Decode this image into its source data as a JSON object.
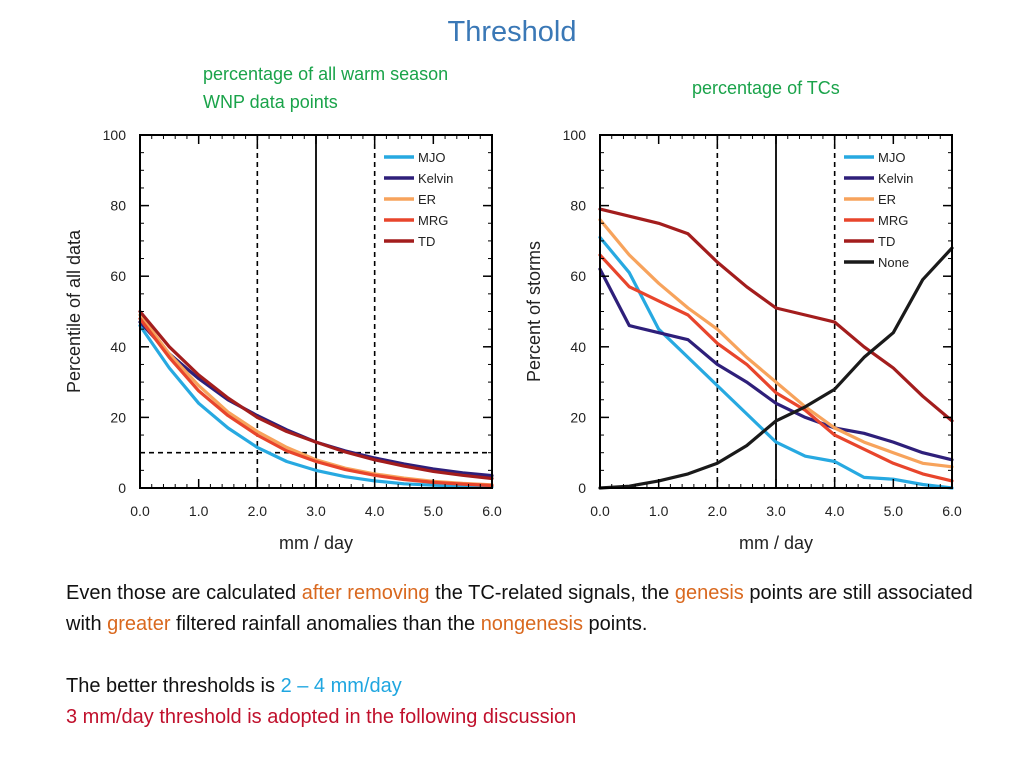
{
  "slide": {
    "title": "Threshold",
    "annotation_left": "percentage of all warm season WNP data points",
    "annotation_right": "percentage of TCs"
  },
  "colors": {
    "title": "#3a78b6",
    "annotation": "#1aa34a",
    "highlight_orange": "#d9681e",
    "highlight_blue": "#1fa6e0",
    "highlight_red": "#c0102c",
    "MJO": "#27a9e1",
    "Kelvin": "#2e1f7a",
    "ER": "#f7a35c",
    "MRG": "#e8452c",
    "TD": "#a31d1d",
    "None": "#1a1a1a"
  },
  "body": {
    "p1_a": "Even those are calculated ",
    "p1_b": "after removing",
    "p1_c": " the TC-related signals, the ",
    "p1_d": "genesis",
    "p1_e": " points are still associated with ",
    "p1_f": "greater",
    "p1_g": " filtered rainfall anomalies than the ",
    "p1_h": "nongenesis",
    "p1_i": " points.",
    "p2_a": "The better thresholds is ",
    "p2_b": "2 – 4 mm/day",
    "p3": "3 mm/day threshold is adopted in the following discussion"
  },
  "chart_data": [
    {
      "type": "line",
      "xlabel": "mm / day",
      "ylabel": "Percentile of all data",
      "xlim": [
        0,
        6
      ],
      "ylim": [
        0,
        100
      ],
      "xticks": [
        0,
        1,
        2,
        3,
        4,
        5,
        6
      ],
      "xtick_labels": [
        "0.0",
        "1.0",
        "2.0",
        "3.0",
        "4.0",
        "5.0",
        "6.0"
      ],
      "yticks": [
        0,
        20,
        40,
        60,
        80,
        100
      ],
      "ytick_labels": [
        "0",
        "20",
        "40",
        "60",
        "80",
        "100"
      ],
      "vlines": [
        {
          "x": 2,
          "style": "dashed"
        },
        {
          "x": 3,
          "style": "solid"
        },
        {
          "x": 4,
          "style": "dashed"
        }
      ],
      "hlines": [
        {
          "y": 10,
          "style": "dashed"
        }
      ],
      "legend": "top-right",
      "x": [
        0,
        0.5,
        1,
        1.5,
        2,
        2.5,
        3,
        3.5,
        4,
        4.5,
        5,
        5.5,
        6
      ],
      "series": [
        {
          "name": "MJO",
          "values": [
            46,
            34,
            24,
            17,
            11.5,
            7.5,
            5,
            3.2,
            2,
            1.2,
            0.8,
            0.5,
            0.3
          ]
        },
        {
          "name": "Kelvin",
          "values": [
            47,
            38,
            31,
            25,
            20.5,
            16.5,
            13,
            10.5,
            8.5,
            6.8,
            5.4,
            4.3,
            3.5
          ]
        },
        {
          "name": "ER",
          "values": [
            49,
            38,
            29,
            21.5,
            16,
            11.5,
            8,
            5.6,
            4,
            2.8,
            1.9,
            1.3,
            0.9
          ]
        },
        {
          "name": "MRG",
          "values": [
            48,
            37,
            27.5,
            20.5,
            15,
            10.5,
            7.5,
            5.2,
            3.6,
            2.4,
            1.6,
            1.1,
            0.7
          ]
        },
        {
          "name": "TD",
          "values": [
            50,
            40,
            32,
            25.5,
            20,
            16,
            13,
            10.2,
            8,
            6.2,
            4.7,
            3.6,
            2.7
          ]
        }
      ]
    },
    {
      "type": "line",
      "xlabel": "mm / day",
      "ylabel": "Percent of storms",
      "xlim": [
        0,
        6
      ],
      "ylim": [
        0,
        100
      ],
      "xticks": [
        0,
        1,
        2,
        3,
        4,
        5,
        6
      ],
      "xtick_labels": [
        "0.0",
        "1.0",
        "2.0",
        "3.0",
        "4.0",
        "5.0",
        "6.0"
      ],
      "yticks": [
        0,
        20,
        40,
        60,
        80,
        100
      ],
      "ytick_labels": [
        "0",
        "20",
        "40",
        "60",
        "80",
        "100"
      ],
      "vlines": [
        {
          "x": 2,
          "style": "dashed"
        },
        {
          "x": 3,
          "style": "solid"
        },
        {
          "x": 4,
          "style": "dashed"
        }
      ],
      "legend": "top-right",
      "x": [
        0,
        0.5,
        1,
        1.5,
        2,
        2.5,
        3,
        3.5,
        4,
        4.5,
        5,
        5.5,
        6
      ],
      "series": [
        {
          "name": "MJO",
          "values": [
            71,
            61,
            45,
            37,
            29,
            21,
            13,
            9,
            7.5,
            3,
            2.5,
            1,
            0
          ]
        },
        {
          "name": "Kelvin",
          "values": [
            62,
            46,
            44,
            42,
            35,
            30,
            24,
            20,
            17,
            15.5,
            13,
            10,
            8
          ]
        },
        {
          "name": "ER",
          "values": [
            76,
            66,
            58,
            51,
            45,
            37,
            30,
            23,
            17,
            13,
            10,
            7,
            6
          ]
        },
        {
          "name": "MRG",
          "values": [
            66,
            57,
            53,
            49,
            41,
            35,
            27,
            22,
            15,
            11,
            7,
            4,
            2
          ]
        },
        {
          "name": "TD",
          "values": [
            79,
            77,
            75,
            72,
            64,
            57,
            51,
            49,
            47,
            40,
            34,
            26,
            19
          ]
        },
        {
          "name": "None",
          "values": [
            0,
            0.5,
            2,
            4,
            7,
            12,
            19,
            23,
            28,
            37,
            44,
            59,
            68
          ]
        }
      ]
    }
  ]
}
